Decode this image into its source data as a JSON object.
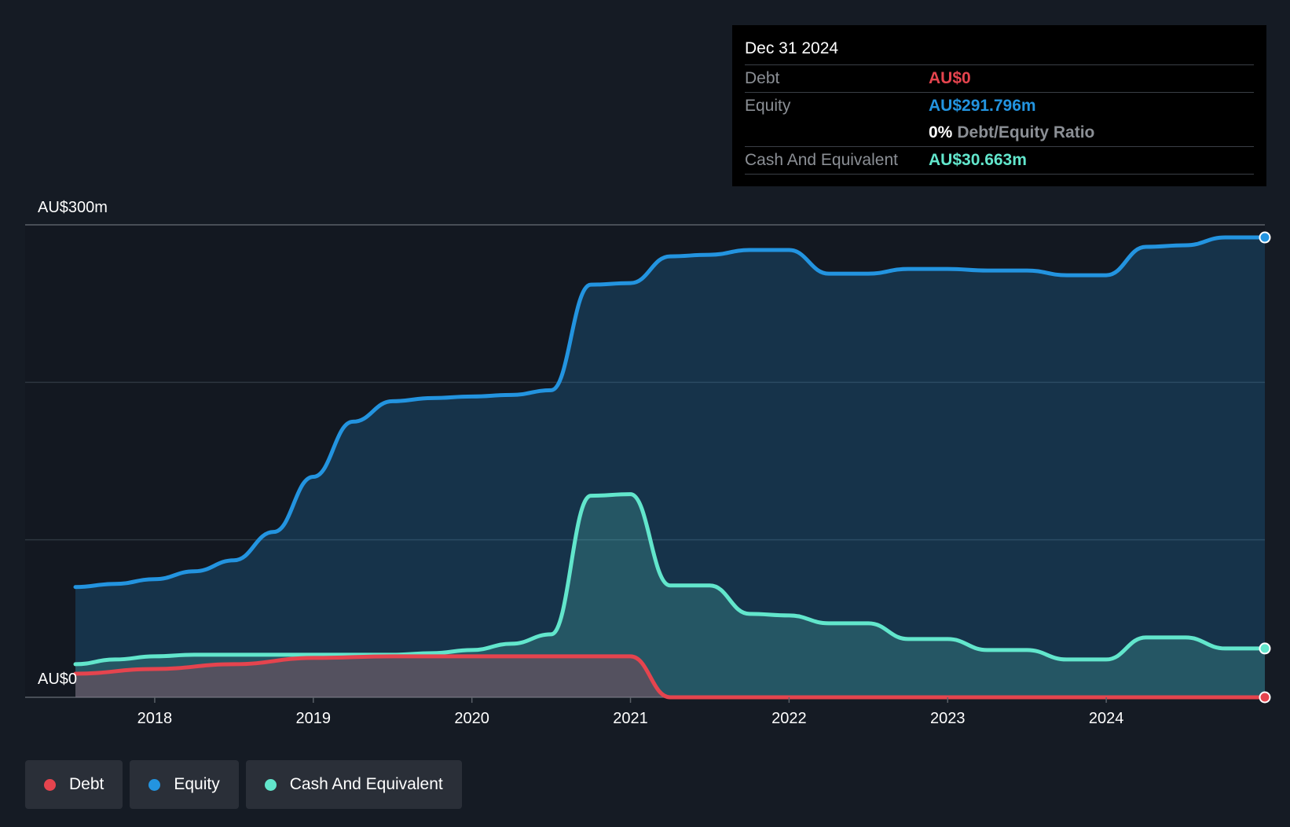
{
  "colors": {
    "debt": "#e5444e",
    "equity": "#2394e0",
    "cash": "#62e6cc",
    "background": "#151b24",
    "plot_background": "#131821"
  },
  "tooltip": {
    "date": "Dec 31 2024",
    "debt_label": "Debt",
    "debt_value": "AU$0",
    "equity_label": "Equity",
    "equity_value": "AU$291.796m",
    "ratio_value": "0%",
    "ratio_label": "Debt/Equity Ratio",
    "cash_label": "Cash And Equivalent",
    "cash_value": "AU$30.663m"
  },
  "legend": [
    {
      "label": "Debt",
      "color_key": "debt"
    },
    {
      "label": "Equity",
      "color_key": "equity"
    },
    {
      "label": "Cash And Equivalent",
      "color_key": "cash"
    }
  ],
  "chart_data": {
    "type": "area",
    "title": "",
    "xlabel": "",
    "ylabel": "",
    "y_tick_labels": [
      "AU$0",
      "AU$300m"
    ],
    "ylim": [
      0,
      300
    ],
    "xlim": [
      2017.5,
      2025.0
    ],
    "x_ticks": [
      2018,
      2019,
      2020,
      2021,
      2022,
      2023,
      2024
    ],
    "x_tick_labels": [
      "2018",
      "2019",
      "2020",
      "2021",
      "2022",
      "2023",
      "2024"
    ],
    "grid": true,
    "series": [
      {
        "name": "Debt",
        "color_key": "debt",
        "points": [
          [
            2017.5,
            15
          ],
          [
            2018.0,
            18
          ],
          [
            2018.5,
            21
          ],
          [
            2019.0,
            25
          ],
          [
            2019.5,
            26
          ],
          [
            2020.0,
            26
          ],
          [
            2020.5,
            26
          ],
          [
            2021.0,
            26
          ],
          [
            2021.25,
            0
          ],
          [
            2021.5,
            0
          ],
          [
            2022.0,
            0
          ],
          [
            2022.5,
            0
          ],
          [
            2023.0,
            0
          ],
          [
            2023.5,
            0
          ],
          [
            2024.0,
            0
          ],
          [
            2024.5,
            0
          ],
          [
            2025.0,
            0
          ]
        ]
      },
      {
        "name": "Equity",
        "color_key": "equity",
        "points": [
          [
            2017.5,
            70
          ],
          [
            2017.75,
            72
          ],
          [
            2018.0,
            75
          ],
          [
            2018.25,
            80
          ],
          [
            2018.5,
            87
          ],
          [
            2018.75,
            105
          ],
          [
            2019.0,
            140
          ],
          [
            2019.25,
            175
          ],
          [
            2019.5,
            188
          ],
          [
            2019.75,
            190
          ],
          [
            2020.0,
            191
          ],
          [
            2020.25,
            192
          ],
          [
            2020.5,
            195
          ],
          [
            2020.75,
            262
          ],
          [
            2021.0,
            263
          ],
          [
            2021.25,
            280
          ],
          [
            2021.5,
            281
          ],
          [
            2021.75,
            284
          ],
          [
            2022.0,
            284
          ],
          [
            2022.25,
            269
          ],
          [
            2022.5,
            269
          ],
          [
            2022.75,
            272
          ],
          [
            2023.0,
            272
          ],
          [
            2023.25,
            271
          ],
          [
            2023.5,
            271
          ],
          [
            2023.75,
            268
          ],
          [
            2024.0,
            268
          ],
          [
            2024.25,
            286
          ],
          [
            2024.5,
            287
          ],
          [
            2024.75,
            292
          ],
          [
            2025.0,
            292
          ]
        ]
      },
      {
        "name": "Cash And Equivalent",
        "color_key": "cash",
        "points": [
          [
            2017.5,
            21
          ],
          [
            2017.75,
            24
          ],
          [
            2018.0,
            26
          ],
          [
            2018.25,
            27
          ],
          [
            2018.5,
            27
          ],
          [
            2019.0,
            27
          ],
          [
            2019.5,
            27
          ],
          [
            2019.75,
            28
          ],
          [
            2020.0,
            30
          ],
          [
            2020.25,
            34
          ],
          [
            2020.5,
            40
          ],
          [
            2020.75,
            128
          ],
          [
            2021.0,
            129
          ],
          [
            2021.25,
            71
          ],
          [
            2021.5,
            71
          ],
          [
            2021.75,
            53
          ],
          [
            2022.0,
            52
          ],
          [
            2022.25,
            47
          ],
          [
            2022.5,
            47
          ],
          [
            2022.75,
            37
          ],
          [
            2023.0,
            37
          ],
          [
            2023.25,
            30
          ],
          [
            2023.5,
            30
          ],
          [
            2023.75,
            24
          ],
          [
            2024.0,
            24
          ],
          [
            2024.25,
            38
          ],
          [
            2024.5,
            38
          ],
          [
            2024.75,
            31
          ],
          [
            2025.0,
            31
          ]
        ]
      }
    ]
  }
}
